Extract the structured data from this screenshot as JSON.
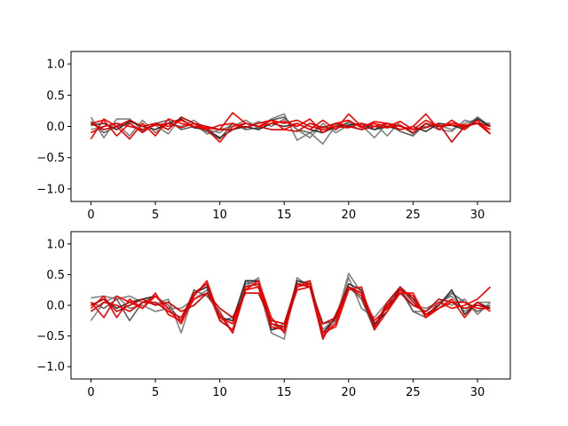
{
  "chart_data": [
    {
      "type": "line",
      "xlim": [
        -1.55,
        32.55
      ],
      "ylim": [
        -1.2,
        1.2
      ],
      "xticks": [
        0,
        5,
        10,
        15,
        20,
        25,
        30
      ],
      "xtick_labels": [
        "0",
        "5",
        "10",
        "15",
        "20",
        "25",
        "30"
      ],
      "yticks": [
        -1.0,
        -0.5,
        0.0,
        0.5,
        1.0
      ],
      "ytick_labels": [
        "−1.0",
        "−0.5",
        "0.0",
        "0.5",
        "1.0"
      ],
      "grid": false,
      "x": [
        0,
        1,
        2,
        3,
        4,
        5,
        6,
        7,
        8,
        9,
        10,
        11,
        12,
        13,
        14,
        15,
        16,
        17,
        18,
        19,
        20,
        21,
        22,
        23,
        24,
        25,
        26,
        27,
        28,
        29,
        30,
        31
      ],
      "series": [
        {
          "color": "#808080",
          "values": [
            0.15,
            -0.18,
            0.12,
            0.12,
            -0.05,
            0.02,
            -0.12,
            0.15,
            0.05,
            -0.12,
            -0.05,
            0.0,
            0.1,
            -0.02,
            0.12,
            0.2,
            -0.22,
            -0.1,
            -0.28,
            0.02,
            0.05,
            0.02,
            -0.18,
            0.05,
            0.02,
            -0.12,
            0.05,
            -0.05,
            -0.08,
            0.1,
            0.05,
            0.05
          ]
        },
        {
          "color": "#808080",
          "values": [
            -0.05,
            0.0,
            0.05,
            -0.15,
            0.1,
            -0.1,
            0.05,
            0.0,
            0.1,
            -0.05,
            -0.1,
            0.05,
            -0.02,
            0.08,
            0.0,
            0.12,
            -0.05,
            -0.18,
            0.05,
            -0.1,
            0.02,
            -0.05,
            0.05,
            -0.15,
            0.08,
            -0.05,
            0.0,
            0.02,
            -0.05,
            0.05,
            0.12,
            0.02
          ]
        },
        {
          "color": "#606060",
          "values": [
            0.08,
            -0.1,
            0.0,
            0.05,
            -0.08,
            0.05,
            0.1,
            -0.05,
            0.0,
            -0.08,
            -0.2,
            0.05,
            -0.05,
            -0.02,
            0.1,
            0.15,
            -0.05,
            -0.1,
            0.0,
            -0.05,
            0.08,
            0.0,
            -0.05,
            0.05,
            -0.08,
            -0.15,
            0.05,
            -0.05,
            0.1,
            -0.02,
            0.15,
            0.0
          ]
        },
        {
          "color": "#303030",
          "values": [
            0.02,
            0.05,
            -0.05,
            0.08,
            0.0,
            -0.05,
            0.05,
            0.12,
            -0.02,
            -0.05,
            -0.18,
            -0.05,
            0.0,
            -0.05,
            0.05,
            0.0,
            0.05,
            -0.05,
            -0.1,
            0.0,
            0.02,
            0.05,
            -0.05,
            0.0,
            -0.05,
            0.0,
            -0.08,
            0.05,
            0.02,
            -0.05,
            0.12,
            0.0
          ]
        },
        {
          "color": "#ff0000",
          "values": [
            -0.2,
            0.12,
            0.0,
            -0.2,
            0.05,
            -0.15,
            0.12,
            0.05,
            0.0,
            -0.05,
            -0.25,
            0.0,
            0.05,
            0.0,
            0.05,
            0.08,
            0.0,
            0.12,
            -0.1,
            0.05,
            0.1,
            -0.02,
            0.08,
            0.05,
            -0.05,
            0.0,
            0.2,
            -0.05,
            0.1,
            -0.05,
            0.1,
            -0.12
          ]
        },
        {
          "color": "#ff0000",
          "values": [
            0.05,
            0.1,
            -0.15,
            0.05,
            -0.1,
            0.05,
            0.0,
            0.1,
            0.0,
            -0.02,
            -0.05,
            0.22,
            0.05,
            0.0,
            0.1,
            -0.05,
            0.05,
            -0.05,
            0.1,
            -0.05,
            0.2,
            0.0,
            0.05,
            0.0,
            0.08,
            -0.05,
            0.1,
            0.0,
            0.05,
            0.02,
            0.05,
            -0.05
          ]
        },
        {
          "color": "#e00000",
          "values": [
            -0.1,
            0.0,
            0.05,
            0.0,
            -0.05,
            0.02,
            0.05,
            -0.02,
            0.05,
            -0.05,
            0.02,
            0.05,
            -0.02,
            0.05,
            0.1,
            0.05,
            0.1,
            0.0,
            -0.05,
            0.0,
            -0.02,
            0.05,
            0.0,
            0.05,
            0.0,
            -0.05,
            -0.02,
            0.05,
            -0.25,
            0.0,
            0.05,
            -0.12
          ]
        },
        {
          "color": "#cc0000",
          "values": [
            0.05,
            -0.05,
            0.0,
            0.1,
            0.0,
            0.05,
            -0.05,
            0.15,
            0.05,
            0.0,
            -0.05,
            -0.05,
            0.05,
            0.0,
            -0.05,
            -0.05,
            -0.08,
            0.05,
            -0.02,
            0.05,
            0.0,
            -0.05,
            0.0,
            -0.02,
            0.02,
            -0.1,
            0.05,
            0.0,
            0.02,
            0.0,
            0.05,
            0.0
          ]
        }
      ]
    },
    {
      "type": "line",
      "xlim": [
        -1.55,
        32.55
      ],
      "ylim": [
        -1.2,
        1.2
      ],
      "xticks": [
        0,
        5,
        10,
        15,
        20,
        25,
        30
      ],
      "xtick_labels": [
        "0",
        "5",
        "10",
        "15",
        "20",
        "25",
        "30"
      ],
      "yticks": [
        -1.0,
        -0.5,
        0.0,
        0.5,
        1.0
      ],
      "ytick_labels": [
        "−1.0",
        "−0.5",
        "0.0",
        "0.5",
        "1.0"
      ],
      "grid": false,
      "x": [
        0,
        1,
        2,
        3,
        4,
        5,
        6,
        7,
        8,
        9,
        10,
        11,
        12,
        13,
        14,
        15,
        16,
        17,
        18,
        19,
        20,
        21,
        22,
        23,
        24,
        25,
        26,
        27,
        28,
        29,
        30,
        31
      ],
      "series": [
        {
          "color": "#808080",
          "values": [
            0.12,
            0.15,
            0.1,
            0.15,
            0.05,
            0.02,
            0.1,
            -0.45,
            0.2,
            0.3,
            -0.2,
            -0.3,
            0.4,
            0.3,
            -0.45,
            -0.55,
            0.45,
            0.3,
            -0.5,
            -0.25,
            0.52,
            0.2,
            -0.3,
            -0.1,
            0.25,
            0.0,
            -0.05,
            0.05,
            0.15,
            -0.1,
            0.05,
            0.05
          ]
        },
        {
          "color": "#808080",
          "values": [
            -0.25,
            0.05,
            0.15,
            -0.05,
            0.0,
            -0.1,
            -0.05,
            -0.05,
            0.1,
            0.25,
            -0.25,
            -0.2,
            0.3,
            0.45,
            -0.4,
            -0.3,
            0.35,
            0.4,
            -0.4,
            -0.2,
            0.45,
            -0.05,
            -0.2,
            0.05,
            0.25,
            -0.1,
            -0.1,
            0.05,
            0.0,
            0.1,
            -0.15,
            0.05
          ]
        },
        {
          "color": "#606060",
          "values": [
            0.05,
            -0.05,
            0.1,
            -0.25,
            0.05,
            0.15,
            0.0,
            -0.25,
            0.25,
            0.15,
            -0.1,
            -0.45,
            0.35,
            0.4,
            -0.3,
            -0.4,
            0.35,
            0.3,
            -0.3,
            -0.25,
            0.3,
            0.1,
            -0.4,
            0.0,
            0.3,
            -0.1,
            -0.2,
            0.0,
            0.2,
            0.05,
            -0.1,
            0.0
          ]
        },
        {
          "color": "#303030",
          "values": [
            0.0,
            0.1,
            -0.05,
            0.05,
            0.1,
            0.15,
            -0.05,
            -0.3,
            0.2,
            0.3,
            -0.2,
            -0.25,
            0.4,
            0.4,
            -0.4,
            -0.35,
            0.4,
            0.35,
            -0.45,
            -0.2,
            0.35,
            0.25,
            -0.3,
            -0.1,
            0.3,
            0.1,
            -0.15,
            0.0,
            0.25,
            -0.15,
            0.05,
            -0.05
          ]
        },
        {
          "color": "#ff0000",
          "values": [
            -0.05,
            0.15,
            -0.2,
            0.1,
            -0.05,
            0.2,
            -0.15,
            -0.25,
            0.1,
            0.2,
            -0.15,
            -0.45,
            0.25,
            0.4,
            -0.2,
            -0.45,
            0.3,
            0.4,
            -0.5,
            -0.3,
            0.3,
            0.2,
            -0.25,
            -0.05,
            0.25,
            0.15,
            -0.2,
            0.05,
            -0.05,
            0.0,
            0.1,
            0.3
          ]
        },
        {
          "color": "#ff0000",
          "values": [
            0.05,
            -0.2,
            0.15,
            0.05,
            -0.05,
            0.15,
            -0.05,
            -0.3,
            0.15,
            0.4,
            -0.2,
            -0.3,
            0.25,
            0.3,
            -0.35,
            -0.4,
            0.3,
            0.35,
            -0.45,
            -0.35,
            0.25,
            0.3,
            -0.4,
            -0.1,
            0.2,
            0.2,
            -0.2,
            -0.05,
            0.1,
            -0.2,
            0.05,
            -0.1
          ]
        },
        {
          "color": "#e00000",
          "values": [
            -0.1,
            0.05,
            0.0,
            -0.1,
            0.05,
            0.05,
            -0.1,
            -0.2,
            0.2,
            0.35,
            -0.25,
            -0.4,
            0.3,
            0.35,
            -0.3,
            -0.35,
            0.25,
            0.3,
            -0.55,
            -0.15,
            0.3,
            0.15,
            -0.35,
            0.05,
            0.3,
            0.05,
            -0.15,
            -0.05,
            0.05,
            0.05,
            -0.05,
            -0.05
          ]
        },
        {
          "color": "#cc0000",
          "values": [
            0.0,
            0.1,
            -0.1,
            0.0,
            0.1,
            0.0,
            0.05,
            -0.1,
            0.0,
            0.2,
            -0.05,
            -0.2,
            0.2,
            0.2,
            -0.25,
            -0.3,
            0.35,
            0.3,
            -0.3,
            -0.2,
            0.3,
            0.2,
            -0.35,
            0.0,
            0.2,
            0.0,
            -0.1,
            0.1,
            0.05,
            -0.05,
            0.0,
            -0.05
          ]
        }
      ]
    }
  ]
}
